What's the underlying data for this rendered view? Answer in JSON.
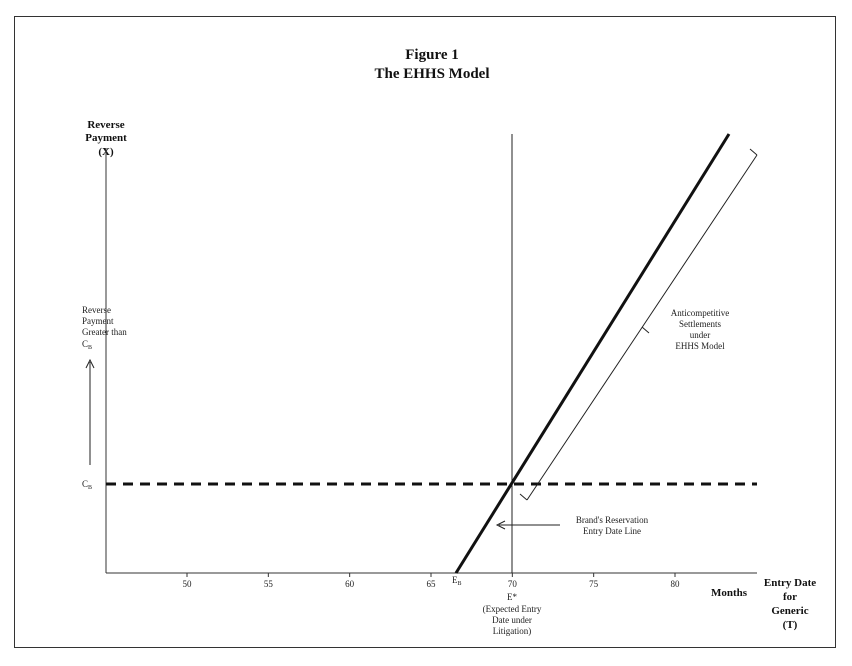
{
  "figure": {
    "title_line1": "Figure 1",
    "title_line2": "The EHHS Model"
  },
  "y_axis": {
    "label_line1": "Reverse",
    "label_line2": "Payment",
    "label_line3": "(X)"
  },
  "x_axis": {
    "label_line1": "Entry Date",
    "label_line2": "for",
    "label_line3": "Generic",
    "label_line4": "(T)",
    "units": "Months",
    "ticks": [
      "50",
      "55",
      "60",
      "65",
      "70",
      "75",
      "80"
    ],
    "range": [
      45,
      84
    ]
  },
  "annotations": {
    "reverse_payment_note": [
      "Reverse",
      "Payment",
      "Greater than"
    ],
    "cb_note_main": "C",
    "cb_note_sub": "B",
    "cb_label_main": "C",
    "cb_label_sub": "B",
    "eb_label_main": "E",
    "eb_label_sub": "B",
    "e_star": "E*",
    "e_star_note": [
      "(Expected Entry",
      "Date under",
      "Litigation)"
    ],
    "reservation_line_note": [
      "Brand's Reservation",
      "Entry Date Line"
    ],
    "anticompetitive_note": [
      "Anticompetitive",
      "Settlements",
      "under",
      "EHHS Model"
    ]
  },
  "chart_data": {
    "type": "line",
    "x_unit": "Months",
    "expected_entry_date": 70,
    "brand_entry_date": 66.5,
    "xlim": [
      45,
      84
    ]
  }
}
